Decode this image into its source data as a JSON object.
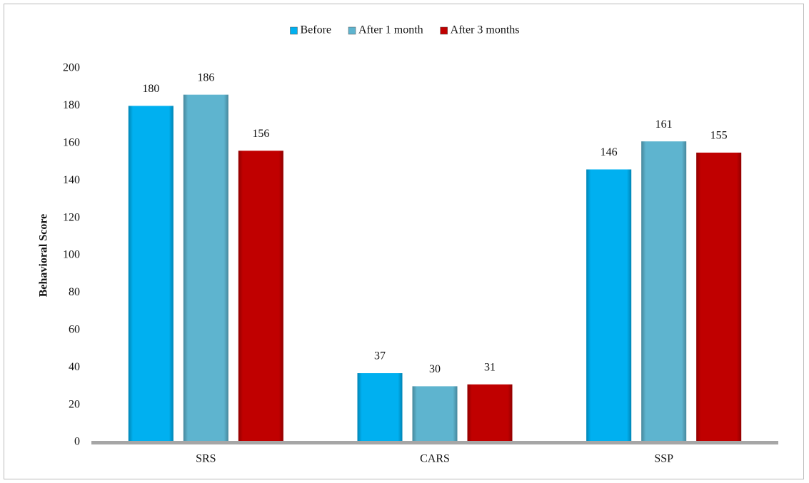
{
  "chart_data": {
    "type": "bar",
    "y_label": "Behavioral Score",
    "categories": [
      "SRS",
      "CARS",
      "SSP"
    ],
    "series": [
      {
        "name": "Before",
        "color": "#00b0f0",
        "values": [
          180,
          37,
          146
        ]
      },
      {
        "name": "After 1 month",
        "color": "#5eb4cf",
        "values": [
          186,
          30,
          161
        ]
      },
      {
        "name": "After 3 months",
        "color": "#c00000",
        "values": [
          156,
          31,
          155
        ]
      }
    ],
    "ylim": [
      0,
      200
    ],
    "yticks": [
      0,
      20,
      40,
      60,
      80,
      100,
      120,
      140,
      160,
      180,
      200
    ],
    "legend": "top"
  }
}
